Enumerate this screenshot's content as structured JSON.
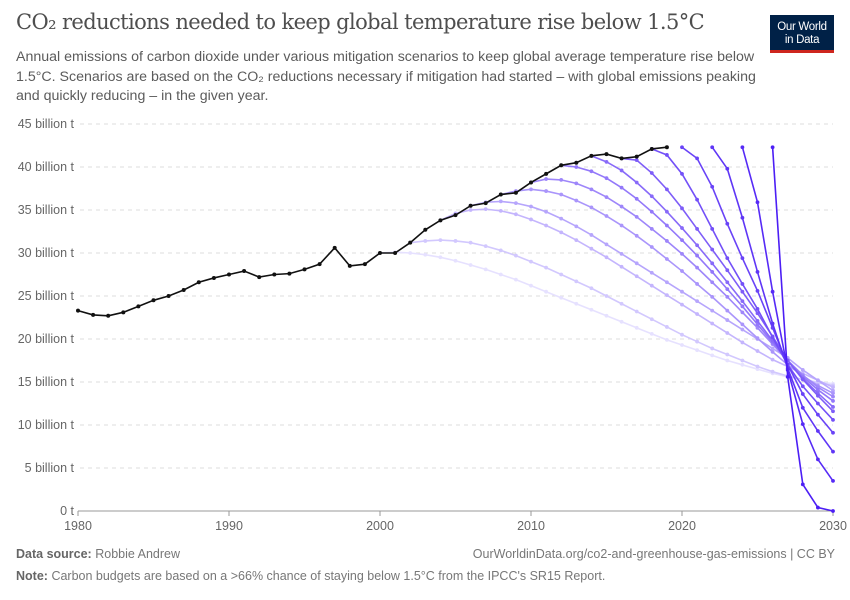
{
  "header": {
    "title": "CO₂ reductions needed to keep global temperature rise below 1.5°C",
    "subtitle": "Annual emissions of carbon dioxide under various mitigation scenarios to keep global average temperature rise below 1.5°C. Scenarios are based on the CO₂ reductions necessary if mitigation had started – with global emissions peaking and quickly reducing – in the given year.",
    "logo_line1": "Our World",
    "logo_line2": "in Data"
  },
  "footer": {
    "source_label": "Data source:",
    "source_value": "Robbie Andrew",
    "url": "OurWorldinData.org/co2-and-greenhouse-gas-emissions | CC BY",
    "note_label": "Note:",
    "note_value": "Carbon budgets are based on a >66% chance of staying below 1.5°C from the IPCC's SR15 Report."
  },
  "colors": {
    "historical": "#111111",
    "scenario_light": "#e6e1ff",
    "scenario_dark": "#4c1ef5",
    "logo_bg": "#002147",
    "logo_bar": "#ce261e"
  },
  "chart_data": {
    "type": "line",
    "title": "CO₂ reductions needed to keep global temperature rise below 1.5°C",
    "xlim": [
      1980,
      2030
    ],
    "ylim": [
      0,
      45
    ],
    "grid": "horizontal dashed",
    "x_ticks": [
      "1980",
      "1990",
      "2000",
      "2010",
      "2020",
      "2030"
    ],
    "y_ticks": [
      "0 t",
      "5 billion t",
      "10 billion t",
      "15 billion t",
      "20 billion t",
      "25 billion t",
      "30 billion t",
      "35 billion t",
      "40 billion t",
      "45 billion t"
    ],
    "historical": {
      "start_year": 1980,
      "values": [
        23.3,
        22.8,
        22.7,
        23.1,
        23.8,
        24.5,
        25.0,
        25.7,
        26.6,
        27.1,
        27.5,
        27.9,
        27.2,
        27.5,
        27.6,
        28.1,
        28.7,
        30.6,
        28.5,
        28.7,
        30.0,
        30.0,
        31.2,
        32.7,
        33.8,
        34.4,
        35.5,
        35.8,
        36.8,
        37.0,
        38.2,
        39.2,
        40.2,
        40.5,
        41.3,
        41.5,
        41.0,
        41.2,
        42.1,
        42.3
      ]
    },
    "scenarios": [
      {
        "start_year": 2000,
        "values": [
          30.0,
          30.1,
          30.0,
          29.8,
          29.5,
          29.1,
          28.6,
          28.1,
          27.5,
          26.9,
          26.2,
          25.5,
          24.8,
          24.1,
          23.4,
          22.7,
          22.0,
          21.3,
          20.6,
          19.9,
          19.3,
          18.7,
          18.1,
          17.5,
          17.0,
          16.5,
          16.0,
          15.6,
          15.3,
          15.0,
          14.8
        ]
      },
      {
        "start_year": 2002,
        "values": [
          31.2,
          31.4,
          31.5,
          31.4,
          31.2,
          30.8,
          30.3,
          29.7,
          29.0,
          28.3,
          27.5,
          26.7,
          25.9,
          25.0,
          24.1,
          23.2,
          22.3,
          21.4,
          20.5,
          19.7,
          18.9,
          18.2,
          17.5,
          16.8,
          16.2,
          15.7,
          15.3,
          14.9,
          14.6
        ]
      },
      {
        "start_year": 2004,
        "values": [
          33.8,
          34.6,
          35.0,
          35.1,
          34.9,
          34.5,
          33.9,
          33.2,
          32.4,
          31.5,
          30.5,
          29.5,
          28.4,
          27.3,
          26.2,
          25.1,
          24.0,
          22.9,
          21.8,
          20.7,
          19.6,
          18.6,
          17.6,
          16.8,
          16.0,
          15.2,
          14.4
        ]
      },
      {
        "start_year": 2006,
        "values": [
          35.5,
          35.9,
          36.0,
          35.8,
          35.4,
          34.8,
          34.0,
          33.1,
          32.1,
          31.0,
          29.9,
          28.8,
          27.7,
          26.6,
          25.5,
          24.4,
          23.3,
          22.2,
          21.1,
          20.0,
          18.9,
          17.8,
          16.4,
          15.2,
          14.0
        ]
      },
      {
        "start_year": 2008,
        "values": [
          36.8,
          37.2,
          37.4,
          37.2,
          36.8,
          36.1,
          35.3,
          34.3,
          33.2,
          32.0,
          30.7,
          29.3,
          27.9,
          26.4,
          24.9,
          23.3,
          21.7,
          20.1,
          18.5,
          17.0,
          15.7,
          14.6,
          13.7
        ]
      },
      {
        "start_year": 2010,
        "values": [
          38.2,
          38.6,
          38.5,
          38.1,
          37.4,
          36.5,
          35.4,
          34.2,
          32.8,
          31.4,
          29.9,
          28.3,
          26.6,
          24.9,
          23.1,
          21.3,
          19.4,
          17.5,
          15.8,
          14.4,
          13.3
        ]
      },
      {
        "start_year": 2012,
        "values": [
          40.2,
          40.0,
          39.5,
          38.7,
          37.6,
          36.3,
          34.8,
          33.2,
          31.5,
          29.7,
          27.8,
          25.8,
          23.8,
          21.7,
          19.6,
          17.5,
          15.6,
          14.1,
          12.8
        ]
      },
      {
        "start_year": 2014,
        "values": [
          41.3,
          40.6,
          39.6,
          38.2,
          36.6,
          34.8,
          32.9,
          30.9,
          28.8,
          26.6,
          24.4,
          22.1,
          19.8,
          17.5,
          15.4,
          13.7,
          12.1
        ]
      },
      {
        "start_year": 2016,
        "values": [
          41.0,
          40.8,
          39.3,
          37.4,
          35.2,
          32.8,
          30.4,
          28.0,
          25.5,
          23.0,
          20.3,
          17.5,
          15.3,
          13.4,
          11.6
        ]
      },
      {
        "start_year": 2018,
        "values": [
          42.1,
          41.4,
          39.2,
          36.2,
          32.8,
          29.4,
          26.4,
          23.5,
          20.2,
          17.0,
          14.5,
          12.5,
          10.6
        ]
      },
      {
        "start_year": 2020,
        "values": [
          42.3,
          41.0,
          37.7,
          33.4,
          29.4,
          25.6,
          21.3,
          17.0,
          13.6,
          11.2,
          9.1
        ]
      },
      {
        "start_year": 2022,
        "values": [
          42.3,
          39.8,
          34.1,
          27.8,
          21.8,
          16.6,
          12.0,
          9.3,
          6.9
        ]
      },
      {
        "start_year": 2024,
        "values": [
          42.3,
          35.9,
          25.5,
          16.4,
          10.1,
          6.0,
          3.5
        ]
      },
      {
        "start_year": 2026,
        "values": [
          42.3,
          15.6,
          3.1,
          0.4,
          0.0
        ]
      }
    ]
  }
}
